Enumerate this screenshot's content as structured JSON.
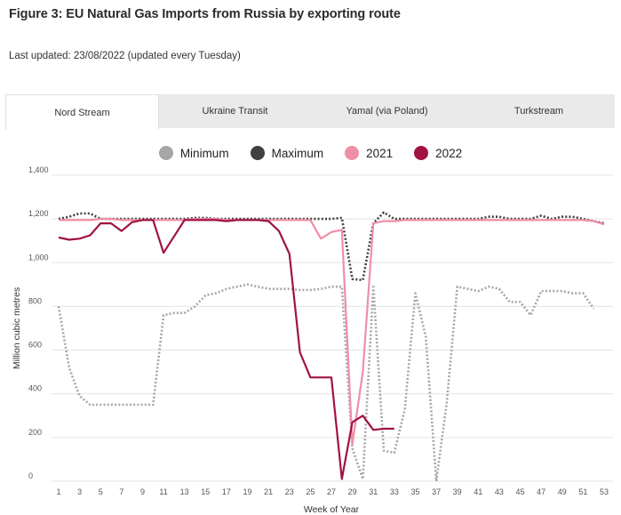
{
  "title": "Figure 3: EU Natural Gas Imports from Russia by exporting route",
  "last_updated": "Last updated: 23/08/2022 (updated every Tuesday)",
  "tabs": [
    {
      "label": "Nord Stream",
      "active": true
    },
    {
      "label": "Ukraine Transit",
      "active": false
    },
    {
      "label": "Yamal (via Poland)",
      "active": false
    },
    {
      "label": "Turkstream",
      "active": false
    }
  ],
  "chart_data": {
    "type": "line",
    "xlabel": "Week of Year",
    "ylabel": "Million cubic metres",
    "xlim": [
      1,
      53
    ],
    "ylim": [
      0,
      1400
    ],
    "x_ticks": [
      1,
      3,
      5,
      7,
      9,
      11,
      13,
      15,
      17,
      19,
      21,
      23,
      25,
      27,
      29,
      31,
      33,
      35,
      37,
      39,
      41,
      43,
      45,
      47,
      49,
      51,
      53
    ],
    "y_ticks": [
      0,
      200,
      400,
      600,
      800,
      1000,
      1200,
      1400
    ],
    "y_tick_labels": [
      "0",
      "200",
      "400",
      "600",
      "800",
      "1,000",
      "1,200",
      "1,400"
    ],
    "grid": "horizontal",
    "legend_position": "top-center",
    "series": [
      {
        "name": "Minimum",
        "color": "#a6a6a6",
        "style": "dotted",
        "x": [
          1,
          2,
          3,
          4,
          5,
          6,
          7,
          8,
          9,
          10,
          11,
          12,
          13,
          14,
          15,
          16,
          17,
          18,
          19,
          20,
          21,
          22,
          23,
          24,
          25,
          26,
          27,
          28,
          29,
          30,
          31,
          32,
          33,
          34,
          35,
          36,
          37,
          38,
          39,
          40,
          41,
          42,
          43,
          44,
          45,
          46,
          47,
          48,
          49,
          50,
          51,
          52
        ],
        "values": [
          800,
          520,
          390,
          350,
          350,
          350,
          350,
          350,
          350,
          350,
          760,
          770,
          770,
          800,
          850,
          860,
          880,
          890,
          900,
          890,
          880,
          880,
          880,
          875,
          875,
          880,
          890,
          890,
          150,
          10,
          890,
          140,
          130,
          330,
          860,
          660,
          0,
          360,
          890,
          880,
          870,
          890,
          880,
          820,
          820,
          760,
          870,
          870,
          870,
          860,
          860,
          790
        ]
      },
      {
        "name": "Maximum",
        "color": "#404040",
        "style": "dotted",
        "x": [
          1,
          2,
          3,
          4,
          5,
          6,
          7,
          8,
          9,
          10,
          11,
          12,
          13,
          14,
          15,
          16,
          17,
          18,
          19,
          20,
          21,
          22,
          23,
          24,
          25,
          26,
          27,
          28,
          29,
          30,
          31,
          32,
          33,
          34,
          35,
          36,
          37,
          38,
          39,
          40,
          41,
          42,
          43,
          44,
          45,
          46,
          47,
          48,
          49,
          50,
          51,
          52,
          53
        ],
        "values": [
          1200,
          1210,
          1225,
          1225,
          1200,
          1200,
          1200,
          1200,
          1200,
          1200,
          1200,
          1200,
          1200,
          1205,
          1205,
          1200,
          1200,
          1200,
          1200,
          1200,
          1200,
          1200,
          1200,
          1200,
          1200,
          1200,
          1200,
          1205,
          925,
          920,
          1180,
          1230,
          1200,
          1200,
          1200,
          1200,
          1200,
          1200,
          1200,
          1200,
          1200,
          1210,
          1210,
          1200,
          1200,
          1200,
          1215,
          1200,
          1210,
          1210,
          1200,
          1190,
          1180
        ]
      },
      {
        "name": "2021",
        "color": "#ef8fa6",
        "style": "solid",
        "x": [
          1,
          2,
          3,
          4,
          5,
          6,
          7,
          8,
          9,
          10,
          11,
          12,
          13,
          14,
          15,
          16,
          17,
          18,
          19,
          20,
          21,
          22,
          23,
          24,
          25,
          26,
          27,
          28,
          29,
          30,
          31,
          32,
          33,
          34,
          35,
          36,
          37,
          38,
          39,
          40,
          41,
          42,
          43,
          44,
          45,
          46,
          47,
          48,
          49,
          50,
          51,
          52,
          53
        ],
        "values": [
          1195,
          1195,
          1195,
          1195,
          1200,
          1200,
          1195,
          1195,
          1195,
          1195,
          1195,
          1195,
          1195,
          1200,
          1200,
          1200,
          1195,
          1195,
          1195,
          1195,
          1195,
          1195,
          1195,
          1195,
          1195,
          1110,
          1140,
          1150,
          170,
          500,
          1180,
          1190,
          1190,
          1195,
          1195,
          1195,
          1195,
          1195,
          1195,
          1195,
          1195,
          1195,
          1195,
          1195,
          1195,
          1195,
          1195,
          1195,
          1195,
          1195,
          1195,
          1190,
          1175
        ]
      },
      {
        "name": "2022",
        "color": "#a01342",
        "style": "solid",
        "x": [
          1,
          2,
          3,
          4,
          5,
          6,
          7,
          8,
          9,
          10,
          11,
          12,
          13,
          14,
          15,
          16,
          17,
          18,
          19,
          20,
          21,
          22,
          23,
          24,
          25,
          26,
          27,
          28,
          29,
          30,
          31,
          32,
          33
        ],
        "values": [
          1115,
          1105,
          1110,
          1125,
          1180,
          1180,
          1145,
          1185,
          1195,
          1195,
          1045,
          1120,
          1195,
          1195,
          1195,
          1195,
          1190,
          1195,
          1195,
          1195,
          1190,
          1145,
          1040,
          590,
          475,
          475,
          475,
          10,
          270,
          300,
          235,
          240,
          240
        ]
      }
    ]
  }
}
